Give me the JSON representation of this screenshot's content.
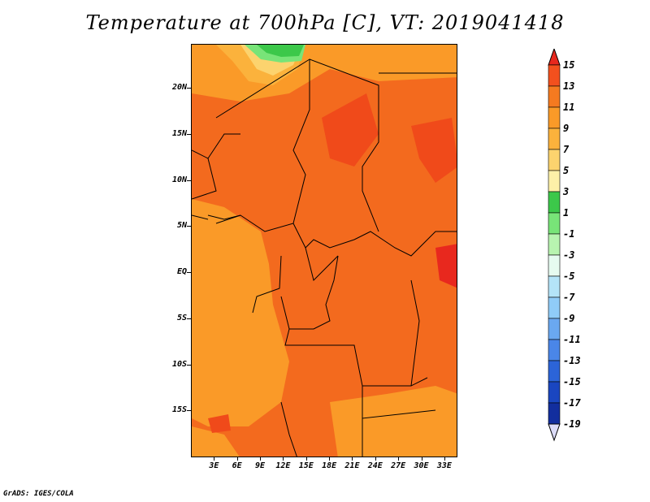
{
  "title": "Temperature at 700hPa [C], VT: 2019041418",
  "credit": "GrADS: IGES/COLA",
  "lat_labels": [
    {
      "label": "20N",
      "value": 20
    },
    {
      "label": "15N",
      "value": 15
    },
    {
      "label": "10N",
      "value": 10
    },
    {
      "label": "5N",
      "value": 5
    },
    {
      "label": "EQ",
      "value": 0
    },
    {
      "label": "5S",
      "value": -5
    },
    {
      "label": "10S",
      "value": -10
    },
    {
      "label": "15S",
      "value": -15
    }
  ],
  "lon_labels": [
    {
      "label": "3E",
      "value": 3
    },
    {
      "label": "6E",
      "value": 6
    },
    {
      "label": "9E",
      "value": 9
    },
    {
      "label": "12E",
      "value": 12
    },
    {
      "label": "15E",
      "value": 15
    },
    {
      "label": "18E",
      "value": 18
    },
    {
      "label": "21E",
      "value": 21
    },
    {
      "label": "24E",
      "value": 24
    },
    {
      "label": "27E",
      "value": 27
    },
    {
      "label": "30E",
      "value": 30
    },
    {
      "label": "33E",
      "value": 33
    }
  ],
  "colorbar": {
    "levels": [
      "15",
      "13",
      "11",
      "9",
      "7",
      "5",
      "3",
      "1",
      "-1",
      "-3",
      "-5",
      "-7",
      "-9",
      "-11",
      "-13",
      "-15",
      "-17",
      "-19"
    ],
    "colors": [
      "#e8281e",
      "#f3501e",
      "#f57a20",
      "#fa9a28",
      "#fbb23c",
      "#fcd36e",
      "#fdf0a8",
      "#3cc84a",
      "#78e478",
      "#b8f4b0",
      "#e6fbf0",
      "#b4e4f8",
      "#90ccf8",
      "#6aa8f0",
      "#4a86e8",
      "#2c64d8",
      "#1a46c0",
      "#122e9e",
      "#0a1468"
    ],
    "top_arrow_color": "#e8281e",
    "bottom_arrow_color": "#dcdcf8"
  },
  "map_colors": {
    "base": "#f36a1e",
    "warm": "#f04a1a",
    "cooler": "#fa9a28",
    "cool": "#fbb23c",
    "pale": "#fcd36e",
    "green": "#3cc84a",
    "light_green": "#78e478"
  }
}
